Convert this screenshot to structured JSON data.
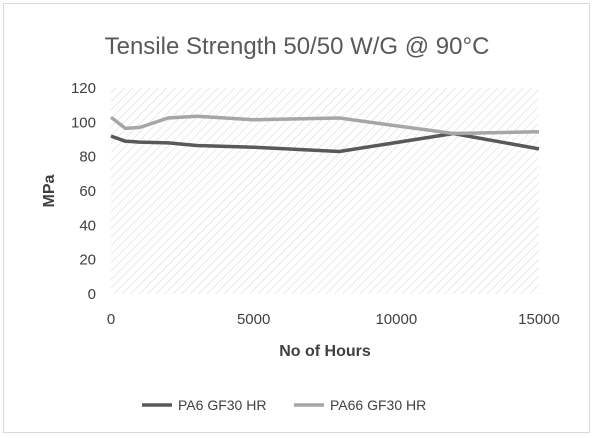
{
  "chart_data": {
    "type": "line",
    "title": "Tensile Strength 50/50 W/G @ 90°C",
    "xlabel": "No of Hours",
    "ylabel": "MPa",
    "xlim": [
      0,
      15000
    ],
    "ylim": [
      0,
      120
    ],
    "xticks": [
      0,
      5000,
      10000,
      15000
    ],
    "yticks": [
      0,
      20,
      40,
      60,
      80,
      100,
      120
    ],
    "grid": false,
    "legend_position": "bottom",
    "series": [
      {
        "name": "PA6 GF30 HR",
        "color": "#595959",
        "points": [
          [
            0,
            92
          ],
          [
            500,
            89
          ],
          [
            1000,
            88.5
          ],
          [
            2000,
            88
          ],
          [
            3000,
            86.5
          ],
          [
            5000,
            85.5
          ],
          [
            8000,
            83
          ],
          [
            12000,
            93.5
          ],
          [
            15000,
            84.5
          ]
        ]
      },
      {
        "name": "PA66 GF30 HR",
        "color": "#a6a6a6",
        "points": [
          [
            0,
            103
          ],
          [
            500,
            96.5
          ],
          [
            1000,
            97
          ],
          [
            2000,
            102.5
          ],
          [
            3000,
            103.5
          ],
          [
            5000,
            101.5
          ],
          [
            8000,
            102.5
          ],
          [
            10000,
            98
          ],
          [
            12000,
            93.5
          ],
          [
            15000,
            94.5
          ]
        ]
      }
    ]
  }
}
